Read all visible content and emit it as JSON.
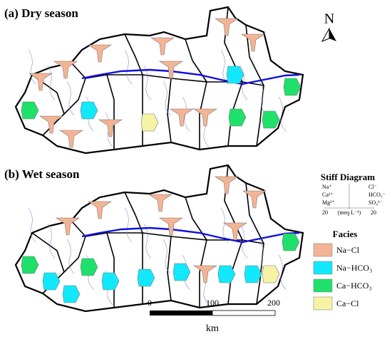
{
  "panels": [
    {
      "label": "(a) Dry season"
    },
    {
      "label": "(b) Wet season"
    }
  ],
  "north": "N",
  "stiff_diagram": {
    "title": "Stiff Diagram",
    "left_ions": [
      "Na⁺",
      "Ca²⁺",
      "Mg²⁺"
    ],
    "right_ions": [
      "Cl⁻",
      "HCO₃⁻",
      "SO₄²⁻"
    ],
    "scale_left": "20",
    "unit": "(meq L⁻¹)",
    "scale_right": "20"
  },
  "facies": {
    "title": "Facies",
    "items": [
      {
        "label": "Na−Cl",
        "color": "#f4b494"
      },
      {
        "label": "Na−HCO₃",
        "color": "#12e8fb"
      },
      {
        "label": "Ca−HCO₃",
        "color": "#1fe06a"
      },
      {
        "label": "Ca−Cl",
        "color": "#f6f4a4"
      }
    ]
  },
  "scale_bar": {
    "ticks": [
      "0",
      "100",
      "200"
    ],
    "unit": "km"
  }
}
